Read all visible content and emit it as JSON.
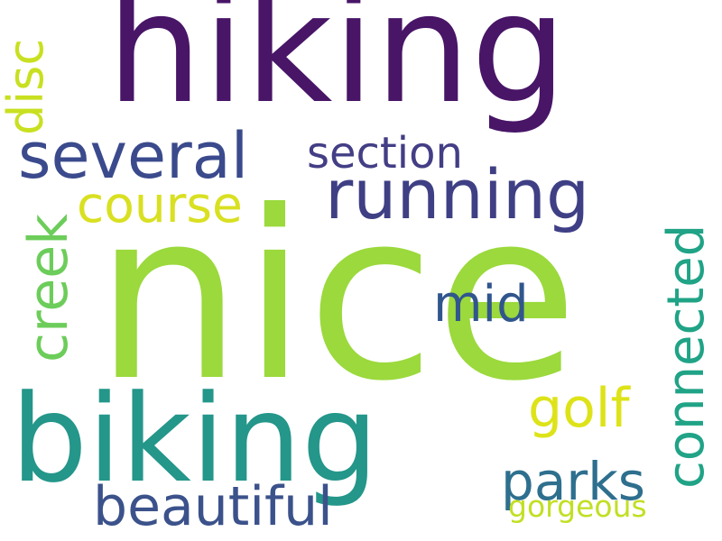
{
  "words": [
    {
      "text": "hiking",
      "color": "#481567"
    },
    {
      "text": "nice",
      "color": "#9bd93c"
    },
    {
      "text": "biking",
      "color": "#24968a"
    },
    {
      "text": "several",
      "color": "#3a4a8c"
    },
    {
      "text": "running",
      "color": "#3f3f85"
    },
    {
      "text": "section",
      "color": "#433e85"
    },
    {
      "text": "course",
      "color": "#d9e021"
    },
    {
      "text": "mid",
      "color": "#31568d"
    },
    {
      "text": "golf",
      "color": "#dde318"
    },
    {
      "text": "parks",
      "color": "#2e6f8e"
    },
    {
      "text": "beautiful",
      "color": "#3b528b"
    },
    {
      "text": "gorgeous",
      "color": "#c2df23"
    },
    {
      "text": "disc",
      "color": "#c8e020"
    },
    {
      "text": "creek",
      "color": "#6ccd5a"
    },
    {
      "text": "connected",
      "color": "#20a386"
    }
  ]
}
